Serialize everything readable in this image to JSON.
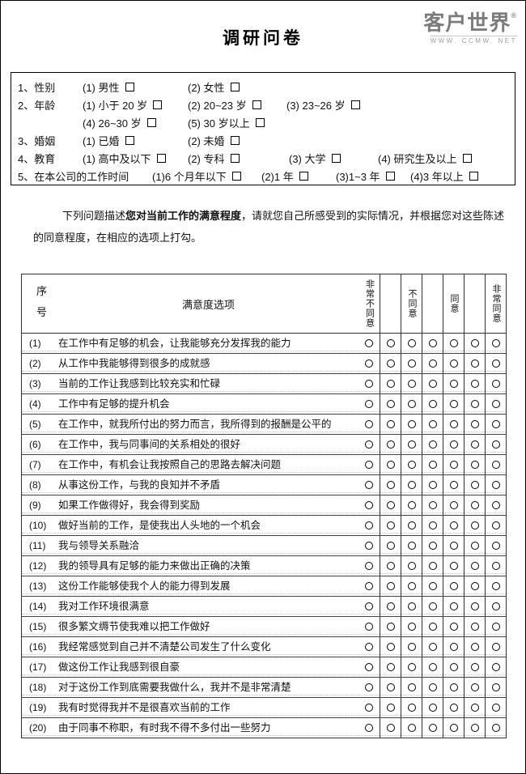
{
  "page_title": "调研问卷",
  "logo": {
    "name": "客户世界",
    "reg": "®",
    "url": "WWW. CCMW. NET"
  },
  "demographics": [
    {
      "label": "1、性别",
      "options": [
        "(1) 男性",
        "(2) 女性"
      ]
    },
    {
      "label": "2、年龄",
      "options": [
        "(1) 小于 20 岁",
        "(2) 20~23 岁",
        "(3) 23~26 岁"
      ]
    },
    {
      "label": "",
      "options": [
        "(4) 26~30 岁",
        "(5) 30 岁以上"
      ]
    },
    {
      "label": "3、婚姻",
      "options": [
        "(1) 已婚",
        "(2) 未婚"
      ]
    },
    {
      "label": "4、教育",
      "options": [
        "(1) 高中及以下",
        "(2) 专科",
        "(3) 大学",
        "(4) 研究生及以上"
      ]
    },
    {
      "label": "5、在本公司的工作时间",
      "options": [
        "(1)6 个月年以下",
        "(2)1 年",
        "(3)1~3 年",
        "(4)3 年以上"
      ]
    }
  ],
  "instructions": {
    "pre": "下列问题描述",
    "bold": "您对当前工作的满意程度",
    "post": "，请就您自己所感受到的实际情况，并根据您对这些陈述的同意程度，在相应的选项上打勾。"
  },
  "table": {
    "col_no_header": "序号",
    "col_item_header": "满意度选项",
    "scale_headers": [
      "非常不同意",
      "不同意",
      "同意",
      "非常同意"
    ],
    "rating_cols": 7,
    "rows": [
      {
        "no": "(1)",
        "text": "在工作中有足够的机会，让我能够充分发挥我的能力"
      },
      {
        "no": "(2)",
        "text": "从工作中我能够得到很多的成就感"
      },
      {
        "no": "(3)",
        "text": "当前的工作让我感到比较充实和忙碌"
      },
      {
        "no": "(4)",
        "text": "工作中有足够的提升机会"
      },
      {
        "no": "(5)",
        "text": "在工作中，就我所付出的努力而言，我所得到的报酬是公平的"
      },
      {
        "no": "(6)",
        "text": "在工作中，我与同事间的关系相处的很好"
      },
      {
        "no": "(7)",
        "text": "在工作中，有机会让我按照自己的思路去解决问题"
      },
      {
        "no": "(8)",
        "text": "从事这份工作，与我的良知并不矛盾"
      },
      {
        "no": "(9)",
        "text": "如果工作做得好，我会得到奖励"
      },
      {
        "no": "(10)",
        "text": "做好当前的工作，是使我出人头地的一个机会"
      },
      {
        "no": "(11)",
        "text": "我与领导关系融洽"
      },
      {
        "no": "(12)",
        "text": "我的领导具有足够的能力来做出正确的决策"
      },
      {
        "no": "(13)",
        "text": "这份工作能够使我个人的能力得到发展"
      },
      {
        "no": "(14)",
        "text": "我对工作环境很满意"
      },
      {
        "no": "(15)",
        "text": "很多繁文缛节使我难以把工作做好"
      },
      {
        "no": "(16)",
        "text": "我经常感觉到自己并不清楚公司发生了什么变化"
      },
      {
        "no": "(17)",
        "text": "做这份工作让我感到很自豪"
      },
      {
        "no": "(18)",
        "text": "对于这份工作到底需要我做什么，我并不是非常清楚"
      },
      {
        "no": "(19)",
        "text": "我有时觉得我并不是很喜欢当前的工作"
      },
      {
        "no": "(20)",
        "text": "由于同事不称职，有时我不得不多付出一些努力"
      }
    ]
  }
}
